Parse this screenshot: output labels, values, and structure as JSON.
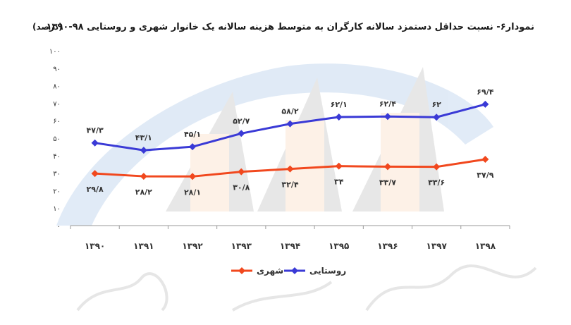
{
  "chart_data": {
    "type": "line",
    "title": "نمودار۶- نسبت حداقل دستمزد سالانه کارگران به متوسط هزینه سالانه یک خانوار شهری و روستایی ۹۸-۱۳۹۰",
    "unit": "(درصد)",
    "xlabel": "",
    "ylabel": "",
    "categories": [
      "۱۳۹۰",
      "۱۳۹۱",
      "۱۳۹۲",
      "۱۳۹۳",
      "۱۳۹۴",
      "۱۳۹۵",
      "۱۳۹۶",
      "۱۳۹۷",
      "۱۳۹۸"
    ],
    "ylim": [
      0,
      100
    ],
    "yticks": [
      0,
      10,
      20,
      30,
      40,
      50,
      60,
      70,
      80,
      90,
      100
    ],
    "ytick_labels": [
      "۰",
      "۱۰",
      "۲۰",
      "۳۰",
      "۴۰",
      "۵۰",
      "۶۰",
      "۷۰",
      "۸۰",
      "۹۰",
      "۱۰۰"
    ],
    "grid": false,
    "legend_position": "bottom",
    "series": [
      {
        "name": "روستایی",
        "color": "#3a3ad6",
        "marker": "diamond",
        "values": [
          47.3,
          43.1,
          45.1,
          52.7,
          58.2,
          62.1,
          62.4,
          62.0,
          69.4
        ],
        "labels": [
          "۴۷/۳",
          "۴۳/۱",
          "۴۵/۱",
          "۵۲/۷",
          "۵۸/۲",
          "۶۲/۱",
          "۶۲/۴",
          "۶۲",
          "۶۹/۴"
        ],
        "label_position": "above"
      },
      {
        "name": "شهری",
        "color": "#f1481e",
        "marker": "diamond",
        "values": [
          29.8,
          28.2,
          28.1,
          30.8,
          32.4,
          34.0,
          33.7,
          33.6,
          37.9
        ],
        "labels": [
          "۲۹/۸",
          "۲۸/۲",
          "۲۸/۱",
          "۳۰/۸",
          "۳۲/۴",
          "۳۴",
          "۳۳/۷",
          "۳۳/۶",
          "۳۷/۹"
        ],
        "label_position": "below"
      }
    ]
  },
  "watermark": {
    "text": "مرکز آمار و اطلاعات راهبردی",
    "colors": [
      "#2b74c4",
      "#f5a05a",
      "#6b6b6b"
    ]
  }
}
